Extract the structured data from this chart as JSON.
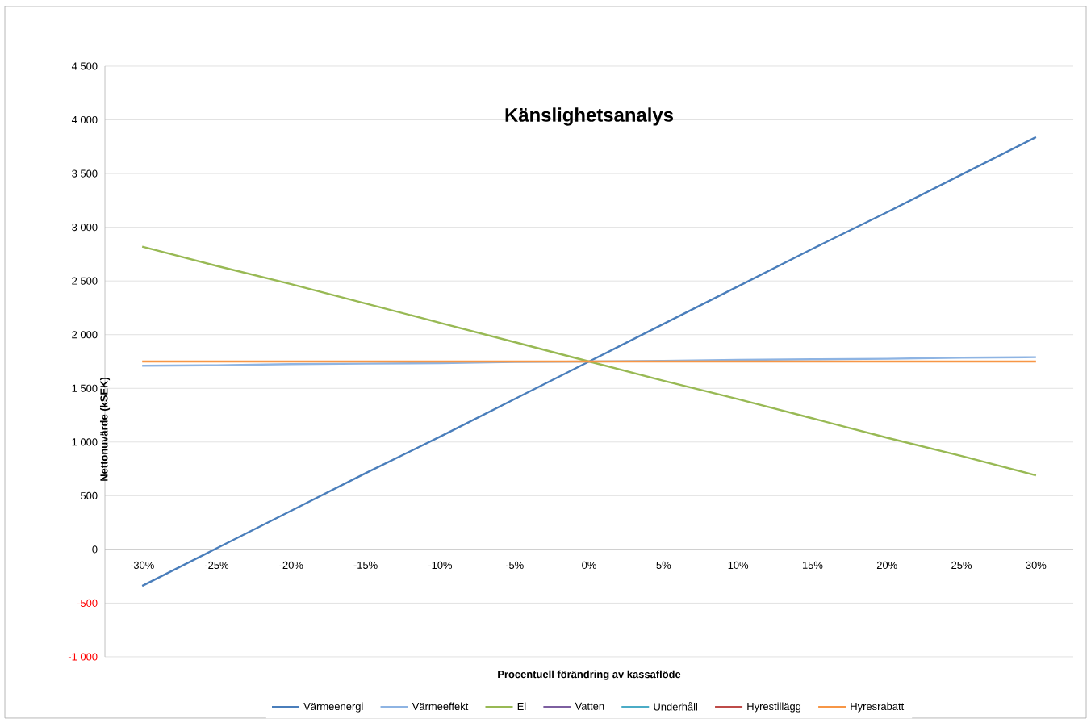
{
  "chart_data": {
    "type": "line",
    "title": "Känslighetsanalys",
    "xlabel": "Procentuell förändring av kassaflöde",
    "ylabel": "Nettonuvärde (kSEK)",
    "categories": [
      "-30%",
      "-25%",
      "-20%",
      "-15%",
      "-10%",
      "-5%",
      "0%",
      "5%",
      "10%",
      "15%",
      "20%",
      "25%",
      "30%"
    ],
    "series": [
      {
        "name": "Värmeenergi",
        "color": "#4a7ebb",
        "values": [
          -340,
          10,
          360,
          710,
          1050,
          1400,
          1750,
          2100,
          2450,
          2800,
          3140,
          3490,
          3840
        ]
      },
      {
        "name": "Värmeeffekt",
        "color": "#8eb4e3",
        "values": [
          1710,
          1715,
          1725,
          1730,
          1735,
          1745,
          1750,
          1755,
          1765,
          1770,
          1775,
          1785,
          1790
        ]
      },
      {
        "name": "El",
        "color": "#98b954",
        "values": [
          2820,
          2640,
          2470,
          2290,
          2110,
          1930,
          1750,
          1570,
          1400,
          1220,
          1040,
          870,
          690
        ]
      },
      {
        "name": "Vatten",
        "color": "#7d5fa0",
        "values": [
          null,
          null,
          null,
          null,
          null,
          null,
          null,
          null,
          null,
          null,
          null,
          null,
          null
        ]
      },
      {
        "name": "Underhåll",
        "color": "#4bacc6",
        "values": [
          null,
          null,
          null,
          null,
          null,
          null,
          null,
          null,
          null,
          null,
          null,
          null,
          null
        ]
      },
      {
        "name": "Hyrestillägg",
        "color": "#be4b48",
        "values": [
          null,
          null,
          null,
          null,
          null,
          null,
          null,
          null,
          null,
          null,
          null,
          null,
          null
        ]
      },
      {
        "name": "Hyresrabatt",
        "color": "#f79646",
        "values": [
          1750,
          1750,
          1750,
          1750,
          1750,
          1750,
          1750,
          1750,
          1750,
          1750,
          1750,
          1750,
          1750
        ]
      }
    ],
    "ylim": [
      -1000,
      4500
    ],
    "yticks": [
      {
        "value": -1000,
        "label": "-1 000"
      },
      -500,
      0,
      500,
      {
        "value": 1000,
        "label": "1 000"
      },
      {
        "value": 1500,
        "label": "1 500"
      },
      {
        "value": 2000,
        "label": "2 000"
      },
      {
        "value": 2500,
        "label": "2 500"
      },
      {
        "value": 3000,
        "label": "3 000"
      },
      {
        "value": 3500,
        "label": "3 500"
      },
      {
        "value": 4000,
        "label": "4 000"
      },
      {
        "value": 4500,
        "label": "4 500"
      }
    ],
    "grid": "y",
    "legend": "bottom",
    "marker": "none",
    "line_style": "solid"
  }
}
